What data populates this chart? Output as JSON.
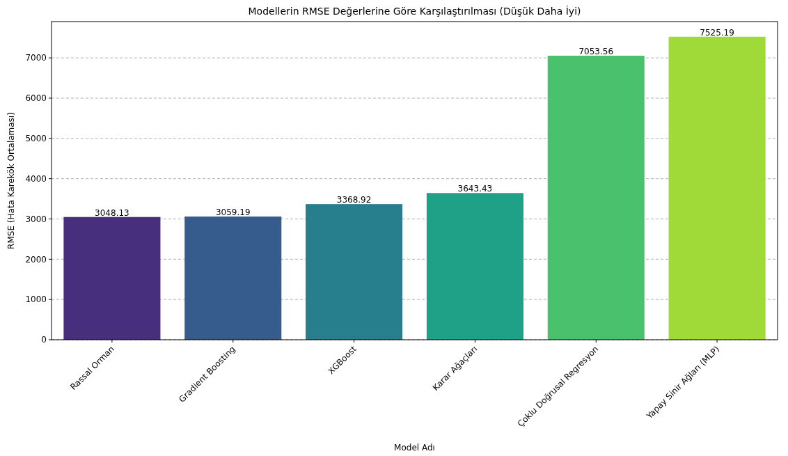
{
  "chart_data": {
    "type": "bar",
    "title": "Modellerin RMSE Değerlerine Göre Karşılaştırılması (Düşük Daha İyi)",
    "xlabel": "Model Adı",
    "ylabel": "RMSE (Hata Karekök Ortalaması)",
    "categories": [
      "Rassal Orman",
      "Gradient Boosting",
      "XGBoost",
      "Karar Ağaçları",
      "Çoklu Doğrusal Regresyon",
      "Yapay Sinir Ağları (MLP)"
    ],
    "values": [
      3048.13,
      3059.19,
      3368.92,
      3643.43,
      7053.56,
      7525.19
    ],
    "colors": [
      "#472f7d",
      "#365c8d",
      "#277f8e",
      "#1fa187",
      "#4ac16d",
      "#a0da39"
    ],
    "ylim": [
      0,
      7901.45
    ],
    "yticks": [
      0,
      1000,
      2000,
      3000,
      4000,
      5000,
      6000,
      7000
    ],
    "grid": "y",
    "line_style": "dashed",
    "data_labels": true
  }
}
